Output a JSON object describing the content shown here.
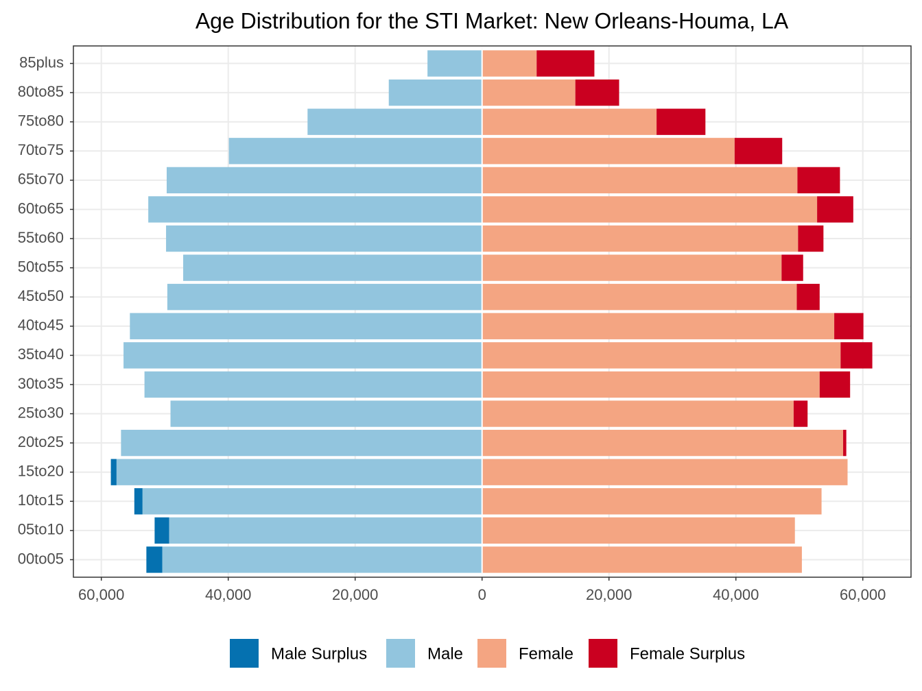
{
  "chart_data": {
    "type": "population-pyramid",
    "title": "Age Distribution for the STI Market: New Orleans-Houma, LA",
    "categories": [
      "00to05",
      "05to10",
      "10to15",
      "15to20",
      "20to25",
      "25to30",
      "30to35",
      "35to40",
      "40to45",
      "45to50",
      "50to55",
      "55to60",
      "60to65",
      "65to70",
      "70to75",
      "75to80",
      "80to85",
      "85plus"
    ],
    "series": [
      {
        "name": "Male Surplus",
        "color": "#0571b0",
        "values": [
          -2500,
          -2300,
          -1300,
          -900,
          0,
          0,
          0,
          0,
          0,
          0,
          0,
          0,
          0,
          0,
          0,
          0,
          0,
          0
        ]
      },
      {
        "name": "Male",
        "color": "#92c5de",
        "values": [
          -50400,
          -49300,
          -53500,
          -57600,
          -56900,
          -49100,
          -53200,
          -56500,
          -55500,
          -49600,
          -47100,
          -49800,
          -52600,
          -49700,
          -39900,
          -27500,
          -14700,
          -8600
        ]
      },
      {
        "name": "Female",
        "color": "#f4a582",
        "values": [
          50400,
          49300,
          53500,
          57600,
          56900,
          49100,
          53200,
          56500,
          55500,
          49600,
          47200,
          49800,
          52800,
          49700,
          39800,
          27500,
          14700,
          8600
        ]
      },
      {
        "name": "Female Surplus",
        "color": "#ca0020",
        "values": [
          0,
          0,
          0,
          0,
          500,
          2200,
          4800,
          5000,
          4600,
          3600,
          3400,
          4000,
          5700,
          6700,
          7500,
          7700,
          6900,
          9100
        ]
      }
    ],
    "xlim": [
      -64400,
      67600
    ],
    "xticks": [
      {
        "value": -60000,
        "label": "60,000"
      },
      {
        "value": -40000,
        "label": "40,000"
      },
      {
        "value": -20000,
        "label": "20,000"
      },
      0,
      {
        "value": 20000,
        "label": "20,000"
      },
      {
        "value": 40000,
        "label": "40,000"
      },
      {
        "value": 60000,
        "label": "60,000"
      }
    ],
    "grid": true,
    "legend_position": "bottom"
  }
}
